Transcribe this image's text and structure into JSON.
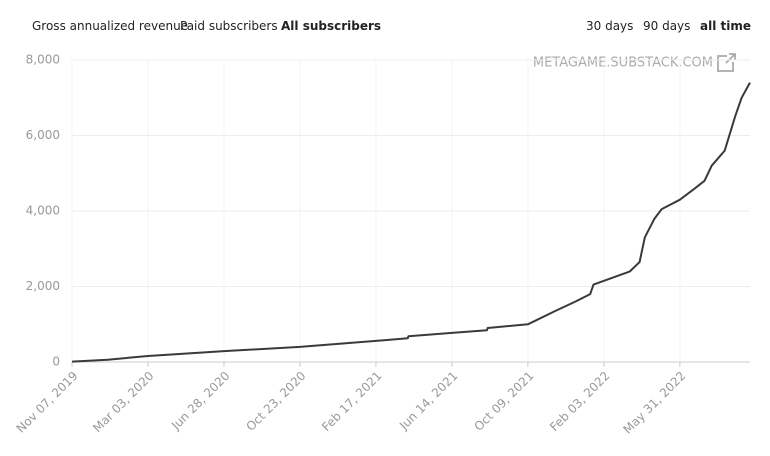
{
  "tabs": [
    "Gross annualized revenue",
    "Paid subscribers",
    "All subscribers"
  ],
  "ranges": [
    "30 days",
    "90 days",
    "all time"
  ],
  "chart_data": {
    "type": "line",
    "annotation": "METAGAME.SUBSTACK.COM",
    "x": [
      "2019-11-07",
      "2020-01-01",
      "2020-03-03",
      "2020-06-28",
      "2020-10-23",
      "2021-02-17",
      "2021-04-07",
      "2021-04-08",
      "2021-06-14",
      "2021-08-07",
      "2021-08-08",
      "2021-10-09",
      "2021-11-20",
      "2021-12-21",
      "2022-01-13",
      "2022-01-18",
      "2022-02-03",
      "2022-03-15",
      "2022-03-30",
      "2022-04-07",
      "2022-04-22",
      "2022-05-03",
      "2022-05-31",
      "2022-06-23",
      "2022-07-08",
      "2022-07-19",
      "2022-08-08",
      "2022-08-24",
      "2022-09-03",
      "2022-09-16"
    ],
    "series": [
      {
        "name": "All subscribers",
        "color": "#3a3a3a",
        "values": [
          10,
          60,
          160,
          290,
          400,
          560,
          630,
          680,
          770,
          840,
          900,
          1000,
          1350,
          1600,
          1800,
          2050,
          2150,
          2400,
          2650,
          3300,
          3800,
          4050,
          4300,
          4600,
          4800,
          5200,
          5600,
          6500,
          7000,
          7400
        ]
      }
    ],
    "xlim": [
      "2019-11-07",
      "2022-09-16"
    ],
    "xticks": [
      {
        "value": "2019-11-07",
        "label": "Nov 07, 2019"
      },
      {
        "value": "2020-03-03",
        "label": "Mar 03, 2020"
      },
      {
        "value": "2020-06-28",
        "label": "Jun 28, 2020"
      },
      {
        "value": "2020-10-23",
        "label": "Oct 23, 2020"
      },
      {
        "value": "2021-02-17",
        "label": "Feb 17, 2021"
      },
      {
        "value": "2021-06-14",
        "label": "Jun 14, 2021"
      },
      {
        "value": "2021-10-09",
        "label": "Oct 09, 2021"
      },
      {
        "value": "2022-02-03",
        "label": "Feb 03, 2022"
      },
      {
        "value": "2022-05-31",
        "label": "May 31, 2022"
      }
    ],
    "ylim": [
      0,
      8000
    ],
    "yticks": [
      0,
      {
        "value": 2000,
        "label": "2,000"
      },
      {
        "value": 4000,
        "label": "4,000"
      },
      {
        "value": 6000,
        "label": "6,000"
      },
      {
        "value": 8000,
        "label": "8,000"
      }
    ],
    "grid": true
  }
}
